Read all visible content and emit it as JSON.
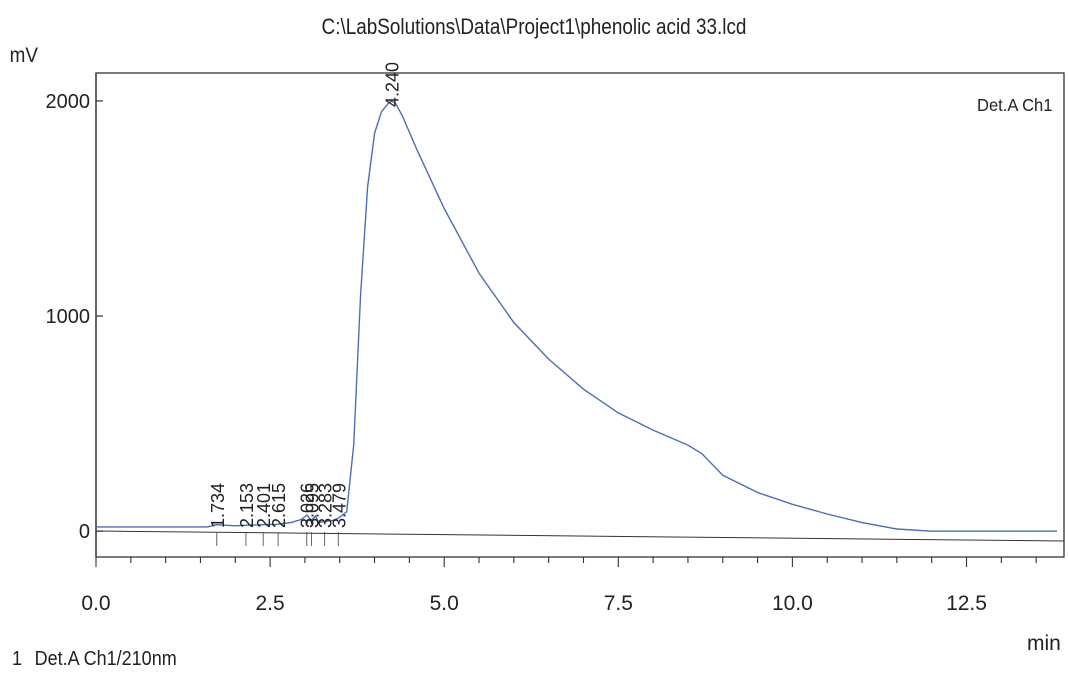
{
  "header": {
    "title": "C:\\LabSolutions\\Data\\Project1\\phenolic acid 33.lcd",
    "y_unit": "mV",
    "x_unit": "min"
  },
  "legend": {
    "index": "1",
    "text": "Det.A Ch1/210nm",
    "box_label": "Det.A Ch1"
  },
  "chart_data": {
    "type": "line",
    "title": "C:\\LabSolutions\\Data\\Project1\\phenolic acid 33.lcd",
    "xlabel": "min",
    "ylabel": "mV",
    "xlim": [
      0,
      13.9
    ],
    "ylim": [
      -120,
      2130
    ],
    "x_ticks": [
      0.0,
      2.5,
      5.0,
      7.5,
      10.0,
      12.5
    ],
    "x_tick_labels": [
      "0.0",
      "2.5",
      "5.0",
      "7.5",
      "10.0",
      "12.5"
    ],
    "y_ticks": [
      0,
      1000,
      2000
    ],
    "y_tick_labels": [
      "0",
      "1000",
      "2000"
    ],
    "legend_position": "top-right",
    "series": [
      {
        "name": "Det.A Ch1",
        "color": "#4a6fb5",
        "x": [
          0.0,
          1.6,
          1.73,
          2.0,
          2.15,
          2.4,
          2.6,
          2.8,
          2.95,
          3.03,
          3.09,
          3.15,
          3.2,
          3.28,
          3.4,
          3.48,
          3.6,
          3.7,
          3.8,
          3.9,
          4.0,
          4.1,
          4.2,
          4.24,
          4.3,
          4.4,
          4.6,
          5.0,
          5.5,
          6.0,
          6.5,
          7.0,
          7.5,
          8.0,
          8.5,
          8.7,
          9.0,
          9.5,
          10.0,
          10.5,
          11.0,
          11.5,
          12.0,
          12.5,
          13.0,
          13.5,
          13.8
        ],
        "y": [
          20,
          20,
          30,
          25,
          28,
          30,
          32,
          40,
          55,
          75,
          50,
          70,
          40,
          45,
          50,
          60,
          90,
          400,
          1100,
          1600,
          1850,
          1950,
          1990,
          2000,
          1990,
          1930,
          1780,
          1500,
          1200,
          970,
          800,
          660,
          550,
          470,
          400,
          360,
          260,
          180,
          125,
          80,
          40,
          10,
          0,
          0,
          0,
          0,
          0
        ]
      }
    ],
    "peaks": [
      "1.734",
      "2.153",
      "2.401",
      "2.615",
      "3.026",
      "3.095",
      "3.283",
      "3.479",
      "4.240"
    ]
  }
}
